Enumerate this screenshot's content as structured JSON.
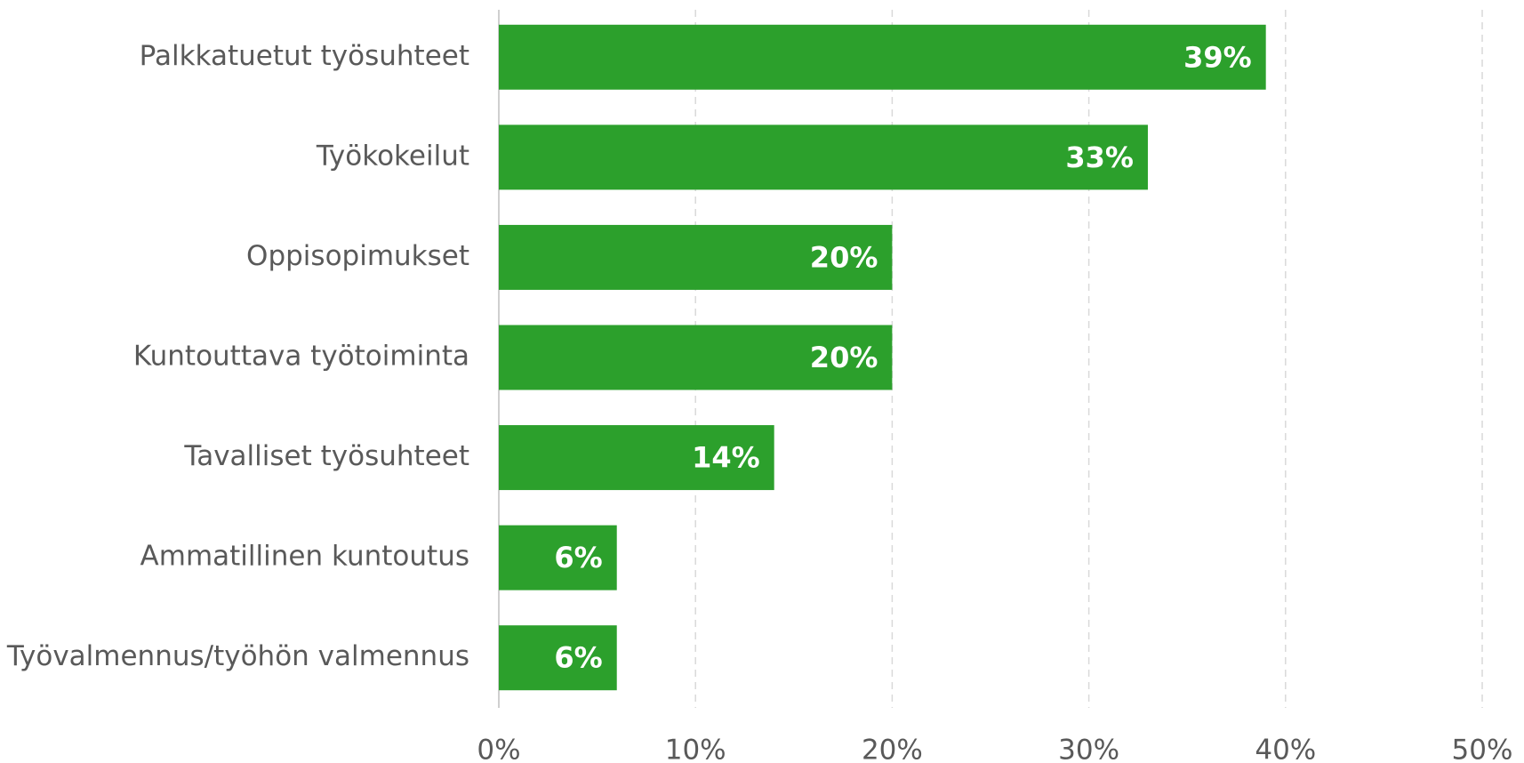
{
  "chart_data": {
    "type": "bar",
    "orientation": "horizontal",
    "categories": [
      "Palkkatuetut työsuhteet",
      "Työkokeilut",
      "Oppisopimukset",
      "Kuntouttava työtoiminta",
      "Tavalliset työsuhteet",
      "Ammatillinen kuntoutus",
      "Työvalmennus/työhön valmennus"
    ],
    "values": [
      39,
      33,
      20,
      20,
      14,
      6,
      6
    ],
    "value_labels": [
      "39%",
      "33%",
      "20%",
      "20%",
      "14%",
      "6%",
      "6%"
    ],
    "color": "#2ca02c",
    "xlim": [
      0,
      50
    ],
    "xticks": [
      {
        "value": 0,
        "label": "0%"
      },
      {
        "value": 10,
        "label": "10%"
      },
      {
        "value": 20,
        "label": "20%"
      },
      {
        "value": 30,
        "label": "30%"
      },
      {
        "value": 40,
        "label": "40%"
      },
      {
        "value": 50,
        "label": "50%"
      }
    ],
    "grid": true
  }
}
